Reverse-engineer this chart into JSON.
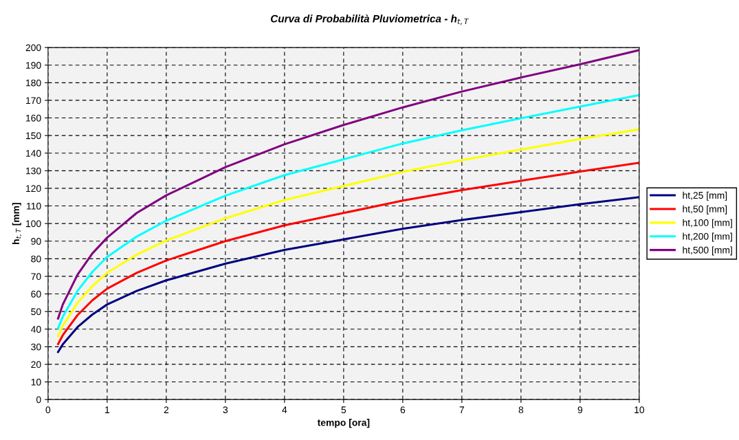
{
  "chart_data": {
    "type": "line",
    "title": "Curva di Probabilità Pluviometrica - h$_{t,T}$",
    "xlabel": "tempo [ora]",
    "ylabel": "h$_{t,T}$ [mm]",
    "x": [
      0.17,
      0.25,
      0.5,
      0.75,
      1,
      1.5,
      2,
      3,
      4,
      5,
      6,
      7,
      8,
      9,
      10
    ],
    "series": [
      {
        "name": "ht,25 [mm]",
        "color": "#000080",
        "values": [
          27,
          31.4,
          41.2,
          48.3,
          54,
          61.7,
          67.7,
          77.2,
          85,
          91,
          97,
          102,
          106.5,
          111,
          115
        ]
      },
      {
        "name": "ht,50 [mm]",
        "color": "#ff0000",
        "values": [
          31.5,
          36.6,
          48,
          56.4,
          63,
          72,
          79,
          90,
          99,
          106,
          113,
          119,
          124.3,
          129.5,
          134.5
        ]
      },
      {
        "name": "ht,100 [mm]",
        "color": "#ffff00",
        "values": [
          36,
          41.9,
          55,
          64.4,
          72,
          82.3,
          90.3,
          103,
          113.3,
          121.3,
          129.3,
          136,
          142,
          148,
          153.5
        ]
      },
      {
        "name": "ht,200 [mm]",
        "color": "#00ffff",
        "values": [
          40.5,
          47.1,
          61.8,
          72.5,
          81,
          92.6,
          101.6,
          115.8,
          127.5,
          136.5,
          145.5,
          153,
          159.8,
          166.5,
          173
        ]
      },
      {
        "name": "ht,500 [mm]",
        "color": "#800080",
        "values": [
          46,
          54,
          71,
          83,
          92,
          106,
          116,
          132,
          145,
          156,
          166,
          175,
          183,
          190.5,
          198.5
        ]
      }
    ],
    "xlim": [
      0,
      10
    ],
    "xticks": [
      0,
      1,
      2,
      3,
      4,
      5,
      6,
      7,
      8,
      9,
      10
    ],
    "ylim": [
      0,
      200
    ],
    "yticks": [
      0,
      10,
      20,
      30,
      40,
      50,
      60,
      70,
      80,
      90,
      100,
      110,
      120,
      130,
      140,
      150,
      160,
      170,
      180,
      190,
      200
    ],
    "grid": true,
    "legend": "right",
    "line_style": "solid",
    "marker": "none"
  }
}
